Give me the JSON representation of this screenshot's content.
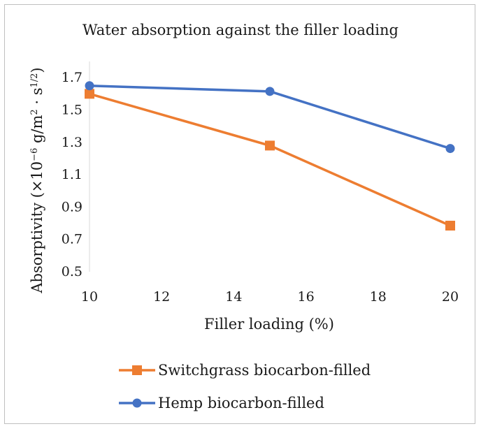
{
  "chart_data": {
    "type": "line",
    "title": "Water absorption against the filler loading",
    "xlabel": "Filler loading (%)",
    "ylabel_parts": {
      "main": "Absorptivity (×10",
      "exp1": "−6",
      "mid": " g/m",
      "exp2": "2",
      "dot": " · s",
      "exp3": "1/2",
      "close": ")"
    },
    "xlim": [
      10,
      20
    ],
    "ylim": [
      0.5,
      1.8
    ],
    "x_ticks": [
      "10",
      "12",
      "14",
      "16",
      "18",
      "20"
    ],
    "y_ticks": [
      "0.5",
      "0.7",
      "0.9",
      "1.1",
      "1.3",
      "1.5",
      "1.7"
    ],
    "legend_position": "bottom",
    "series": [
      {
        "name": "Switchgrass biocarbon-filled",
        "color": "#ED7D31",
        "marker": "square",
        "x": [
          10,
          15,
          20
        ],
        "y": [
          1.6,
          1.28,
          0.785
        ]
      },
      {
        "name": "Hemp biocarbon-filled",
        "color": "#4472C4",
        "marker": "circle",
        "x": [
          10,
          15,
          20
        ],
        "y": [
          1.65,
          1.615,
          1.262
        ]
      }
    ]
  }
}
